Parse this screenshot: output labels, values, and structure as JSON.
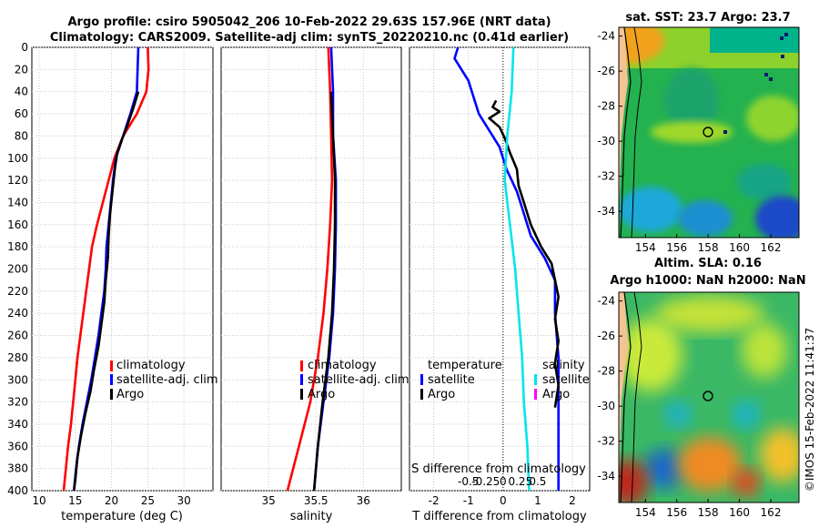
{
  "title": {
    "line1": "Argo profile: csiro 5905042_206 10-Feb-2022 29.63S 157.96E (NRT data)",
    "line2": "Climatology: CARS2009. Satellite-adj clim: synTS_20220210.nc (0.41d earlier)"
  },
  "colors": {
    "climatology": "#ff0000",
    "satellite": "#0000ff",
    "argo": "#000000",
    "s_satellite": "#00e5ee",
    "s_argo": "#ff00ff"
  },
  "depth_ticks": [
    "0",
    "20",
    "40",
    "60",
    "80",
    "100",
    "120",
    "140",
    "160",
    "180",
    "200",
    "220",
    "240",
    "260",
    "280",
    "300",
    "320",
    "340",
    "360",
    "380",
    "400"
  ],
  "chart_data": [
    {
      "type": "line",
      "name": "temperature-profile",
      "xlabel": "temperature (deg C)",
      "xlim": [
        9,
        34
      ],
      "ylim": [
        0,
        400
      ],
      "xticks": [
        "10",
        "15",
        "20",
        "25",
        "30"
      ],
      "legend": [
        "climatology",
        "satellite-adj. clim",
        "Argo"
      ],
      "series": [
        {
          "name": "climatology",
          "color": "#ff0000",
          "points": [
            [
              25.0,
              0
            ],
            [
              25.1,
              20
            ],
            [
              24.8,
              40
            ],
            [
              23.5,
              60
            ],
            [
              21.6,
              80
            ],
            [
              20.4,
              100
            ],
            [
              19.6,
              120
            ],
            [
              18.8,
              140
            ],
            [
              18.0,
              160
            ],
            [
              17.3,
              180
            ],
            [
              16.9,
              200
            ],
            [
              16.5,
              220
            ],
            [
              16.1,
              240
            ],
            [
              15.7,
              260
            ],
            [
              15.3,
              280
            ],
            [
              15.0,
              300
            ],
            [
              14.7,
              320
            ],
            [
              14.4,
              340
            ],
            [
              14.0,
              360
            ],
            [
              13.7,
              380
            ],
            [
              13.4,
              400
            ]
          ]
        },
        {
          "name": "satellite-adj. clim",
          "color": "#0000ff",
          "points": [
            [
              23.7,
              0
            ],
            [
              23.6,
              20
            ],
            [
              23.5,
              40
            ],
            [
              22.6,
              60
            ],
            [
              21.6,
              80
            ],
            [
              20.6,
              100
            ],
            [
              20.2,
              120
            ],
            [
              19.9,
              140
            ],
            [
              19.6,
              160
            ],
            [
              19.3,
              180
            ],
            [
              19.2,
              200
            ],
            [
              19.0,
              220
            ],
            [
              18.6,
              240
            ],
            [
              18.2,
              260
            ],
            [
              17.7,
              280
            ],
            [
              17.2,
              300
            ],
            [
              16.6,
              320
            ],
            [
              16.0,
              340
            ],
            [
              15.5,
              360
            ],
            [
              15.1,
              380
            ],
            [
              14.8,
              400
            ]
          ]
        },
        {
          "name": "Argo",
          "color": "#000000",
          "points": [
            [
              23.7,
              40
            ],
            [
              23.0,
              55
            ],
            [
              22.2,
              70
            ],
            [
              21.5,
              82
            ],
            [
              20.8,
              95
            ],
            [
              20.5,
              108
            ],
            [
              20.2,
              125
            ],
            [
              19.8,
              150
            ],
            [
              19.6,
              170
            ],
            [
              19.5,
              190
            ],
            [
              19.2,
              210
            ],
            [
              19.0,
              230
            ],
            [
              18.6,
              250
            ],
            [
              18.2,
              270
            ],
            [
              17.6,
              290
            ],
            [
              17.1,
              310
            ],
            [
              16.4,
              330
            ],
            [
              15.8,
              350
            ],
            [
              15.3,
              370
            ],
            [
              15.0,
              390
            ],
            [
              14.8,
              400
            ]
          ]
        }
      ]
    },
    {
      "type": "line",
      "name": "salinity-profile",
      "xlabel": "salinity",
      "xlim": [
        34.5,
        36.4
      ],
      "ylim": [
        0,
        400
      ],
      "xticks": [
        "35",
        "35.5",
        "36"
      ],
      "legend": [
        "climatology",
        "satellite-adj. clim",
        "Argo"
      ],
      "series": [
        {
          "name": "climatology",
          "color": "#ff0000",
          "points": [
            [
              35.63,
              0
            ],
            [
              35.65,
              40
            ],
            [
              35.66,
              80
            ],
            [
              35.67,
              120
            ],
            [
              35.65,
              160
            ],
            [
              35.62,
              200
            ],
            [
              35.58,
              240
            ],
            [
              35.52,
              280
            ],
            [
              35.44,
              320
            ],
            [
              35.32,
              360
            ],
            [
              35.2,
              400
            ]
          ]
        },
        {
          "name": "satellite-adj. clim",
          "color": "#0000ff",
          "points": [
            [
              35.66,
              0
            ],
            [
              35.68,
              40
            ],
            [
              35.68,
              80
            ],
            [
              35.71,
              120
            ],
            [
              35.71,
              160
            ],
            [
              35.7,
              200
            ],
            [
              35.68,
              240
            ],
            [
              35.64,
              280
            ],
            [
              35.58,
              320
            ],
            [
              35.52,
              360
            ],
            [
              35.48,
              400
            ]
          ]
        },
        {
          "name": "Argo",
          "color": "#000000",
          "points": [
            [
              35.66,
              40
            ],
            [
              35.68,
              80
            ],
            [
              35.7,
              120
            ],
            [
              35.7,
              160
            ],
            [
              35.69,
              200
            ],
            [
              35.67,
              240
            ],
            [
              35.63,
              280
            ],
            [
              35.57,
              320
            ],
            [
              35.52,
              360
            ],
            [
              35.48,
              400
            ]
          ]
        }
      ]
    },
    {
      "type": "line",
      "name": "difference-profile",
      "xlabel": "T difference from climatology",
      "xlim": [
        -2.7,
        2.5
      ],
      "ylim": [
        0,
        400
      ],
      "xticks": [
        "-2",
        "-1",
        "0",
        "1",
        "2"
      ],
      "top_label": "S difference from climatology",
      "top_ticks": [
        "-0.5",
        "-0.25",
        "0",
        "0.25",
        "0.5"
      ],
      "legend_left": {
        "header": "temperature",
        "items": [
          "satellite",
          "Argo"
        ]
      },
      "legend_right": {
        "header": "salinity",
        "items": [
          "satellite",
          "Argo"
        ]
      },
      "series": [
        {
          "name": "temperature satellite",
          "color": "#0000ff",
          "points": [
            [
              -1.3,
              0
            ],
            [
              -1.4,
              10
            ],
            [
              -1.0,
              30
            ],
            [
              -0.7,
              60
            ],
            [
              -0.1,
              90
            ],
            [
              0.1,
              110
            ],
            [
              0.4,
              130
            ],
            [
              0.6,
              150
            ],
            [
              0.8,
              170
            ],
            [
              1.2,
              190
            ],
            [
              1.5,
              210
            ],
            [
              1.5,
              240
            ],
            [
              1.6,
              280
            ],
            [
              1.6,
              320
            ],
            [
              1.6,
              360
            ],
            [
              1.6,
              400
            ]
          ]
        },
        {
          "name": "temperature Argo",
          "color": "#000000",
          "points": [
            [
              -0.2,
              48
            ],
            [
              -0.3,
              54
            ],
            [
              -0.1,
              58
            ],
            [
              -0.4,
              64
            ],
            [
              -0.1,
              72
            ],
            [
              0.05,
              82
            ],
            [
              0.2,
              95
            ],
            [
              0.4,
              110
            ],
            [
              0.45,
              125
            ],
            [
              0.6,
              140
            ],
            [
              0.8,
              160
            ],
            [
              1.1,
              180
            ],
            [
              1.4,
              195
            ],
            [
              1.5,
              210
            ],
            [
              1.6,
              225
            ],
            [
              1.5,
              245
            ],
            [
              1.6,
              265
            ],
            [
              1.5,
              285
            ],
            [
              1.6,
              305
            ],
            [
              1.5,
              325
            ]
          ]
        },
        {
          "name": "salinity satellite",
          "color": "#00e5ee",
          "points": [
            [
              0.3,
              0
            ],
            [
              0.25,
              40
            ],
            [
              0.12,
              80
            ],
            [
              0.05,
              120
            ],
            [
              0.2,
              160
            ],
            [
              0.35,
              200
            ],
            [
              0.45,
              240
            ],
            [
              0.55,
              280
            ],
            [
              0.6,
              320
            ],
            [
              0.7,
              360
            ],
            [
              0.75,
              400
            ]
          ]
        }
      ]
    }
  ],
  "maps": {
    "sst": {
      "title": "sat. SST: 23.7 Argo: 23.7",
      "xticks": [
        "154",
        "156",
        "158",
        "160",
        "162"
      ],
      "yticks": [
        "-24",
        "-26",
        "-28",
        "-30",
        "-32",
        "-34"
      ]
    },
    "sla": {
      "title1": "Altim. SLA: 0.16",
      "title2": "Argo h1000: NaN h2000: NaN",
      "xticks": [
        "154",
        "156",
        "158",
        "160",
        "162"
      ],
      "yticks": [
        "-24",
        "-26",
        "-28",
        "-30",
        "-32",
        "-34"
      ]
    }
  },
  "footer": "©IMOS 15-Feb-2022 11:41:37"
}
